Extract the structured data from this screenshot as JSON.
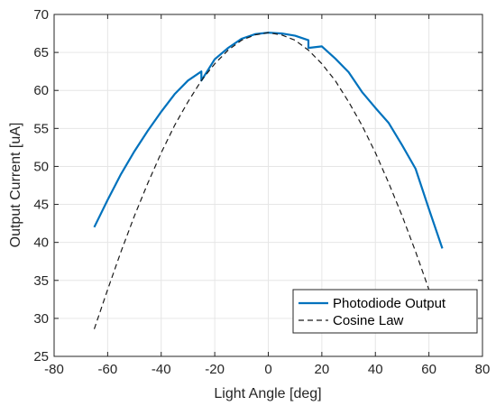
{
  "chart_data": {
    "type": "line",
    "title": "",
    "xlabel": "Light Angle [deg]",
    "ylabel": "Output Current [uA]",
    "xlim": [
      -80,
      80
    ],
    "ylim": [
      25,
      70
    ],
    "xticks": [
      -80,
      -60,
      -40,
      -20,
      0,
      20,
      40,
      60,
      80
    ],
    "yticks": [
      25,
      30,
      35,
      40,
      45,
      50,
      55,
      60,
      65,
      70
    ],
    "grid": true,
    "legend_position": "bottom-right",
    "series": [
      {
        "name": "Photodiode Output",
        "color": "#0072bd",
        "style": "solid",
        "x": [
          -65,
          -60,
          -55,
          -50,
          -45,
          -40,
          -35,
          -30,
          -25,
          -25,
          -20,
          -15,
          -10,
          -5,
          0,
          5,
          10,
          15,
          15,
          20,
          25,
          30,
          35,
          40,
          45,
          50,
          55,
          60,
          65
        ],
        "y": [
          42.0,
          45.6,
          49.0,
          52.0,
          54.7,
          57.2,
          59.5,
          61.3,
          62.5,
          61.3,
          64.1,
          65.6,
          66.8,
          67.4,
          67.6,
          67.5,
          67.2,
          66.6,
          65.6,
          65.8,
          64.2,
          62.4,
          59.8,
          57.7,
          55.7,
          52.8,
          49.7,
          44.4,
          39.2
        ]
      },
      {
        "name": "Cosine Law",
        "color": "#1a1a1a",
        "style": "dashed",
        "peak": 67.6,
        "x": [
          -65,
          -60,
          -55,
          -50,
          -45,
          -40,
          -35,
          -30,
          -25,
          -20,
          -15,
          -10,
          -5,
          0,
          5,
          10,
          15,
          20,
          25,
          30,
          35,
          40,
          45,
          50,
          55,
          60,
          62.5
        ],
        "y": [
          28.6,
          33.8,
          38.8,
          43.5,
          47.8,
          51.8,
          55.4,
          58.5,
          61.3,
          63.5,
          65.3,
          66.6,
          67.3,
          67.6,
          67.3,
          66.6,
          65.3,
          63.5,
          61.3,
          58.5,
          55.4,
          51.8,
          47.8,
          43.5,
          38.8,
          33.8,
          31.2
        ]
      }
    ]
  }
}
